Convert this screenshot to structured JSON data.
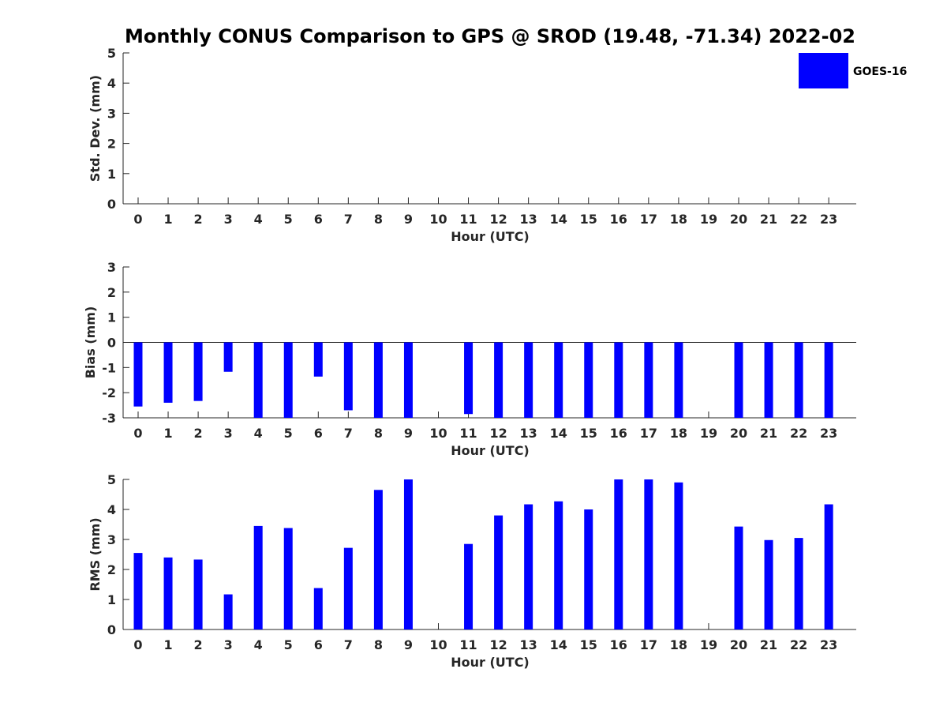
{
  "title": "Monthly CONUS Comparison to GPS @ SROD (19.48, -71.34) 2022-02",
  "legend": {
    "label": "GOES-16",
    "color": "#0000ff"
  },
  "chart_data": [
    {
      "type": "bar",
      "name": "std",
      "ylabel": "Std. Dev. (mm)",
      "xlabel": "Hour (UTC)",
      "ylim": [
        0,
        5
      ],
      "yticks": [
        "0",
        "1",
        "2",
        "3",
        "4",
        "5"
      ],
      "categories": [
        "0",
        "1",
        "2",
        "3",
        "4",
        "5",
        "6",
        "7",
        "8",
        "9",
        "10",
        "11",
        "12",
        "13",
        "14",
        "15",
        "16",
        "17",
        "18",
        "19",
        "20",
        "21",
        "22",
        "23"
      ],
      "values": [
        null,
        null,
        null,
        null,
        null,
        null,
        null,
        null,
        null,
        null,
        null,
        null,
        null,
        null,
        null,
        null,
        null,
        null,
        null,
        null,
        null,
        null,
        null,
        null
      ]
    },
    {
      "type": "bar",
      "name": "bias",
      "ylabel": "Bias (mm)",
      "xlabel": "Hour (UTC)",
      "ylim": [
        -3,
        3
      ],
      "yticks": [
        "-3",
        "-2",
        "-1",
        "0",
        "1",
        "2",
        "3"
      ],
      "categories": [
        "0",
        "1",
        "2",
        "3",
        "4",
        "5",
        "6",
        "7",
        "8",
        "9",
        "10",
        "11",
        "12",
        "13",
        "14",
        "15",
        "16",
        "17",
        "18",
        "19",
        "20",
        "21",
        "22",
        "23"
      ],
      "values": [
        -2.55,
        -2.4,
        -2.33,
        -1.17,
        -3.0,
        -3.0,
        -1.36,
        -2.7,
        -3.0,
        -3.0,
        null,
        -2.85,
        -3.0,
        -3.0,
        -3.0,
        -3.0,
        -3.0,
        -3.0,
        -3.0,
        null,
        -3.0,
        -3.0,
        -3.0,
        -3.0
      ]
    },
    {
      "type": "bar",
      "name": "rms",
      "ylabel": "RMS (mm)",
      "xlabel": "Hour (UTC)",
      "ylim": [
        0,
        5
      ],
      "yticks": [
        "0",
        "1",
        "2",
        "3",
        "4",
        "5"
      ],
      "categories": [
        "0",
        "1",
        "2",
        "3",
        "4",
        "5",
        "6",
        "7",
        "8",
        "9",
        "10",
        "11",
        "12",
        "13",
        "14",
        "15",
        "16",
        "17",
        "18",
        "19",
        "20",
        "21",
        "22",
        "23"
      ],
      "values": [
        2.55,
        2.4,
        2.33,
        1.17,
        3.45,
        3.38,
        1.38,
        2.72,
        4.65,
        5.0,
        null,
        2.85,
        3.8,
        4.17,
        4.27,
        4.0,
        5.0,
        5.0,
        4.9,
        null,
        3.43,
        2.98,
        3.05,
        4.17
      ]
    }
  ]
}
